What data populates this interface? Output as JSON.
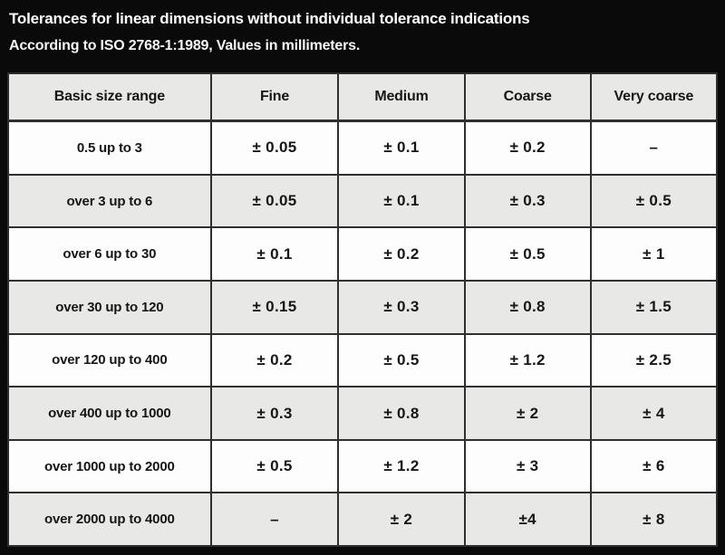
{
  "title": {
    "line1": "Tolerances for linear dimensions without individual tolerance indications",
    "line2": "According to ISO 2768-1:1989, Values in millimeters."
  },
  "table": {
    "columns": [
      "Basic size range",
      "Fine",
      "Medium",
      "Coarse",
      "Very coarse"
    ],
    "rows": [
      {
        "range": "0.5 up to 3",
        "values": [
          "± 0.05",
          "± 0.1",
          "± 0.2",
          "–"
        ]
      },
      {
        "range": "over 3 up to 6",
        "values": [
          "± 0.05",
          "± 0.1",
          "± 0.3",
          "± 0.5"
        ]
      },
      {
        "range": "over 6 up to 30",
        "values": [
          "± 0.1",
          "± 0.2",
          "± 0.5",
          "± 1"
        ]
      },
      {
        "range": "over 30 up to 120",
        "values": [
          "± 0.15",
          "± 0.3",
          "± 0.8",
          "± 1.5"
        ]
      },
      {
        "range": "over 120 up to 400",
        "values": [
          "± 0.2",
          "± 0.5",
          "± 1.2",
          "± 2.5"
        ]
      },
      {
        "range": "over 400 up to 1000",
        "values": [
          "± 0.3",
          "± 0.8",
          "± 2",
          "± 4"
        ]
      },
      {
        "range": "over 1000 up to 2000",
        "values": [
          "± 0.5",
          "± 1.2",
          "± 3",
          "± 6"
        ]
      },
      {
        "range": "over 2000 up to 4000",
        "values": [
          "–",
          "± 2",
          "±4",
          "± 8"
        ]
      }
    ]
  },
  "colors": {
    "background": "#0a0a0a",
    "title_text": "#ffffff",
    "row_white": "#fdfdfd",
    "row_gray": "#e8e8e6",
    "cell_border": "#2f2f2f",
    "cell_text": "#161616"
  }
}
